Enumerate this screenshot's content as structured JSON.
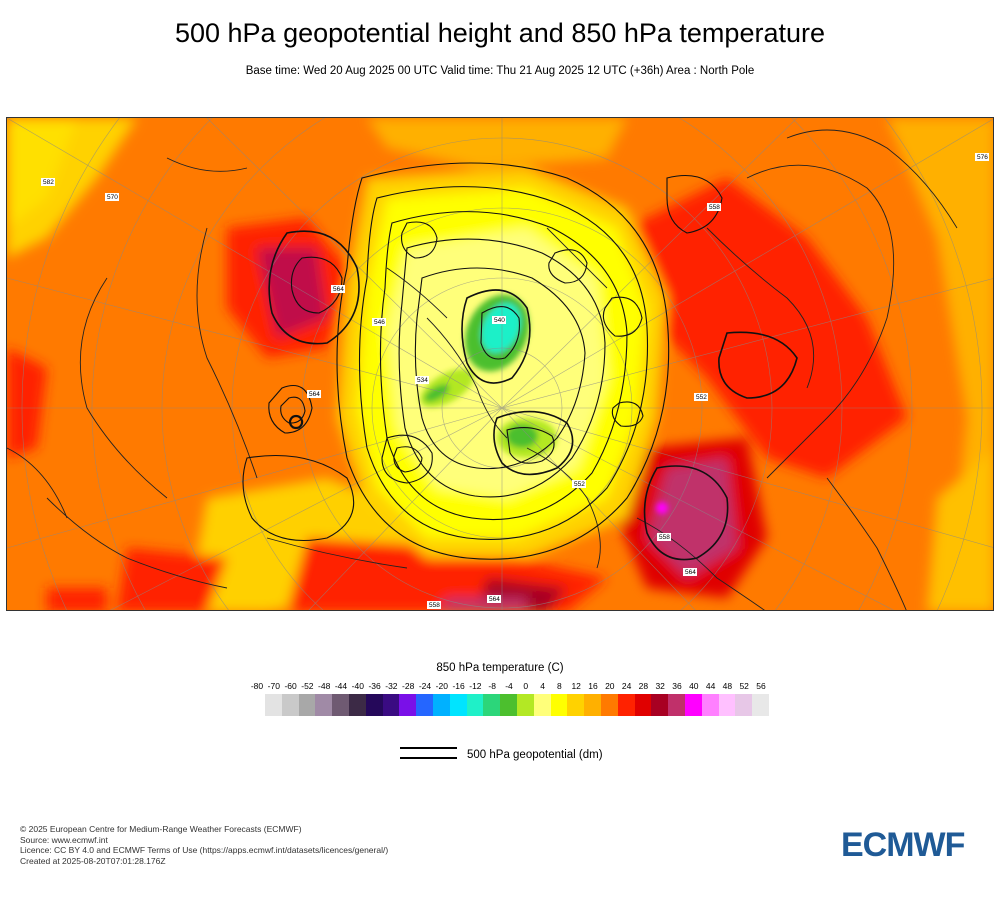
{
  "header": {
    "title": "500 hPa geopotential height and 850 hPa temperature",
    "subtitle": "Base time: Wed 20 Aug 2025 00 UTC Valid time: Thu 21 Aug 2025 12 UTC (+36h) Area : North Pole"
  },
  "colorbar": {
    "title": "850 hPa temperature (C)",
    "ticks": [
      "-80",
      "-70",
      "-60",
      "-52",
      "-48",
      "-44",
      "-40",
      "-36",
      "-32",
      "-28",
      "-24",
      "-20",
      "-16",
      "-12",
      "-8",
      "-4",
      "0",
      "4",
      "8",
      "12",
      "16",
      "20",
      "24",
      "28",
      "32",
      "36",
      "40",
      "44",
      "48",
      "52",
      "56"
    ],
    "colors": [
      "#e3e3e3",
      "#c9c9c9",
      "#a8a8a8",
      "#a08aa6",
      "#6f5a72",
      "#3c2a46",
      "#25085a",
      "#3a0b82",
      "#7a10e8",
      "#2566ff",
      "#00b1ff",
      "#00e4ff",
      "#1ff0c8",
      "#2cd67a",
      "#4cbf2e",
      "#b3e824",
      "#ffff7a",
      "#ffff00",
      "#ffd200",
      "#ffb000",
      "#ff7a00",
      "#ff2200",
      "#e00000",
      "#a80022",
      "#c0306a",
      "#ff00ff",
      "#ff80ff",
      "#ffc0ff",
      "#e7c7e7",
      "#e8e8e8"
    ]
  },
  "legend": {
    "label": "500 hPa geopotential (dm)"
  },
  "footer": {
    "lines": [
      "© 2025 European Centre for Medium-Range Weather Forecasts (ECMWF)",
      "Source: www.ecmwf.int",
      "Licence: CC BY 4.0 and ECMWF Terms of Use (https://apps.ecmwf.int/datasets/licences/general/)",
      "Created at 2025-08-20T07:01:28.176Z"
    ]
  },
  "logo": {
    "text": "ECMWF",
    "color": "#1f5a96"
  },
  "map": {
    "contour_labels": [
      "564",
      "558",
      "552",
      "546",
      "540",
      "534",
      "528",
      "570",
      "576",
      "582",
      "588",
      "594"
    ]
  }
}
